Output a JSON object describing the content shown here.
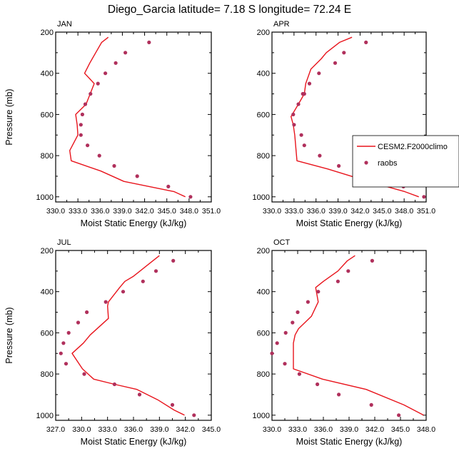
{
  "figure": {
    "title": "Diego_Garcia  latitude= 7.18 S longitude= 72.24 E"
  },
  "colors": {
    "model": "#e8141c",
    "obs": "#b0305c",
    "axis": "#000000"
  },
  "chart_data": [
    {
      "type": "line",
      "panel": "JAN",
      "title": "JAN",
      "xlabel": "Moist Static Energy (kJ/kg)",
      "ylabel": "Pressure (mb)",
      "xlim": [
        330,
        351
      ],
      "ylim": [
        1025,
        200
      ],
      "xticks": [
        "330.0",
        "333.0",
        "336.0",
        "339.0",
        "342.0",
        "345.0",
        "348.0",
        "351.0"
      ],
      "yticks": [
        "200",
        "400",
        "600",
        "800",
        "1000"
      ],
      "show_ylabel": true,
      "series": [
        {
          "name": "CESM2.F2000climo",
          "kind": "line",
          "x": [
            337.1,
            336.2,
            335.4,
            334.6,
            333.9,
            335.2,
            334.1,
            332.7,
            332.9,
            333.0,
            331.9,
            332.1,
            336.1,
            339.2,
            346.0,
            347.5
          ],
          "y": [
            225,
            250,
            300,
            350,
            400,
            450,
            550,
            600,
            650,
            700,
            775,
            825,
            875,
            925,
            975,
            1000
          ]
        },
        {
          "name": "raobs",
          "kind": "scatter",
          "x": [
            342.6,
            339.4,
            338.1,
            336.7,
            335.7,
            334.7,
            334.0,
            333.6,
            333.4,
            333.4,
            334.3,
            335.9,
            337.9,
            341.0,
            345.2,
            348.2
          ],
          "y": [
            250,
            300,
            350,
            400,
            450,
            500,
            550,
            600,
            650,
            700,
            750,
            800,
            850,
            900,
            950,
            1000
          ]
        }
      ]
    },
    {
      "type": "line",
      "panel": "APR",
      "title": "APR",
      "xlabel": "Moist Static Energy (kJ/kg)",
      "ylabel": "Pressure (mb)",
      "xlim": [
        330,
        351
      ],
      "ylim": [
        1025,
        200
      ],
      "xticks": [
        "330.0",
        "333.0",
        "336.0",
        "339.0",
        "342.0",
        "345.0",
        "348.0",
        "351.0"
      ],
      "yticks": [
        "200",
        "400",
        "600",
        "800",
        "1000"
      ],
      "show_ylabel": false,
      "legend": {
        "position": "right",
        "entries": [
          "CESM2.F2000climo",
          "raobs"
        ]
      },
      "series": [
        {
          "name": "CESM2.F2000climo",
          "kind": "line",
          "x": [
            340.9,
            339.2,
            337.4,
            336.7,
            335.3,
            334.6,
            334.4,
            333.6,
            332.6,
            332.9,
            333.1,
            333.4,
            337.6,
            343.1,
            348.1,
            350.0
          ],
          "y": [
            225,
            250,
            300,
            330,
            380,
            450,
            500,
            550,
            610,
            650,
            700,
            825,
            865,
            925,
            975,
            1000
          ]
        },
        {
          "name": "raobs",
          "kind": "scatter",
          "x": [
            342.8,
            339.8,
            338.6,
            336.4,
            335.1,
            334.4,
            334.2,
            333.6,
            332.9,
            333.0,
            334.0,
            334.4,
            336.5,
            339.1,
            342.9,
            347.9,
            350.7
          ],
          "y": [
            250,
            300,
            350,
            400,
            450,
            500,
            500,
            550,
            600,
            650,
            700,
            750,
            800,
            850,
            900,
            950,
            1000
          ]
        }
      ]
    },
    {
      "type": "line",
      "panel": "JUL",
      "title": "JUL",
      "xlabel": "Moist Static Energy (kJ/kg)",
      "ylabel": "Pressure (mb)",
      "xlim": [
        327,
        345
      ],
      "ylim": [
        1025,
        200
      ],
      "xticks": [
        "327.0",
        "330.0",
        "333.0",
        "336.0",
        "339.0",
        "342.0",
        "345.0"
      ],
      "yticks": [
        "200",
        "400",
        "600",
        "800",
        "1000"
      ],
      "show_ylabel": true,
      "series": [
        {
          "name": "CESM2.F2000climo",
          "kind": "line",
          "x": [
            339.0,
            337.5,
            336.0,
            335.0,
            334.4,
            333.1,
            333.0,
            333.1,
            331.0,
            330.2,
            328.9,
            330.1,
            331.4,
            333.8,
            336.4,
            338.8,
            340.7,
            341.9
          ],
          "y": [
            225,
            275,
            325,
            350,
            380,
            450,
            470,
            530,
            610,
            650,
            700,
            775,
            825,
            850,
            875,
            925,
            975,
            1000
          ]
        },
        {
          "name": "raobs",
          "kind": "scatter",
          "x": [
            340.6,
            338.6,
            337.1,
            334.8,
            332.8,
            330.6,
            329.6,
            328.5,
            327.9,
            327.6,
            328.2,
            330.3,
            333.8,
            336.7,
            340.5,
            343.0
          ],
          "y": [
            250,
            300,
            350,
            400,
            450,
            500,
            550,
            600,
            650,
            700,
            750,
            800,
            850,
            900,
            950,
            1000
          ]
        }
      ]
    },
    {
      "type": "line",
      "panel": "OCT",
      "title": "OCT",
      "xlabel": "Moist Static Energy (kJ/kg)",
      "ylabel": "Pressure (mb)",
      "xlim": [
        330,
        348
      ],
      "ylim": [
        1025,
        200
      ],
      "xticks": [
        "330.0",
        "333.0",
        "336.0",
        "339.0",
        "342.0",
        "345.0",
        "348.0"
      ],
      "yticks": [
        "200",
        "400",
        "600",
        "800",
        "1000"
      ],
      "show_ylabel": false,
      "series": [
        {
          "name": "CESM2.F2000climo",
          "kind": "line",
          "x": [
            339.7,
            338.8,
            337.7,
            336.0,
            335.1,
            335.4,
            334.6,
            333.1,
            332.7,
            332.5,
            332.5,
            332.5,
            335.9,
            341.0,
            345.4,
            347.7
          ],
          "y": [
            225,
            250,
            300,
            350,
            380,
            450,
            520,
            580,
            610,
            650,
            750,
            775,
            825,
            875,
            950,
            1000
          ]
        },
        {
          "name": "raobs",
          "kind": "scatter",
          "x": [
            341.7,
            338.9,
            337.7,
            335.4,
            334.2,
            333.0,
            332.4,
            331.6,
            330.6,
            330.0,
            331.5,
            333.2,
            335.3,
            337.8,
            341.6,
            344.8
          ],
          "y": [
            250,
            300,
            350,
            400,
            450,
            500,
            550,
            600,
            650,
            700,
            750,
            800,
            850,
            900,
            950,
            1000
          ]
        }
      ]
    }
  ]
}
